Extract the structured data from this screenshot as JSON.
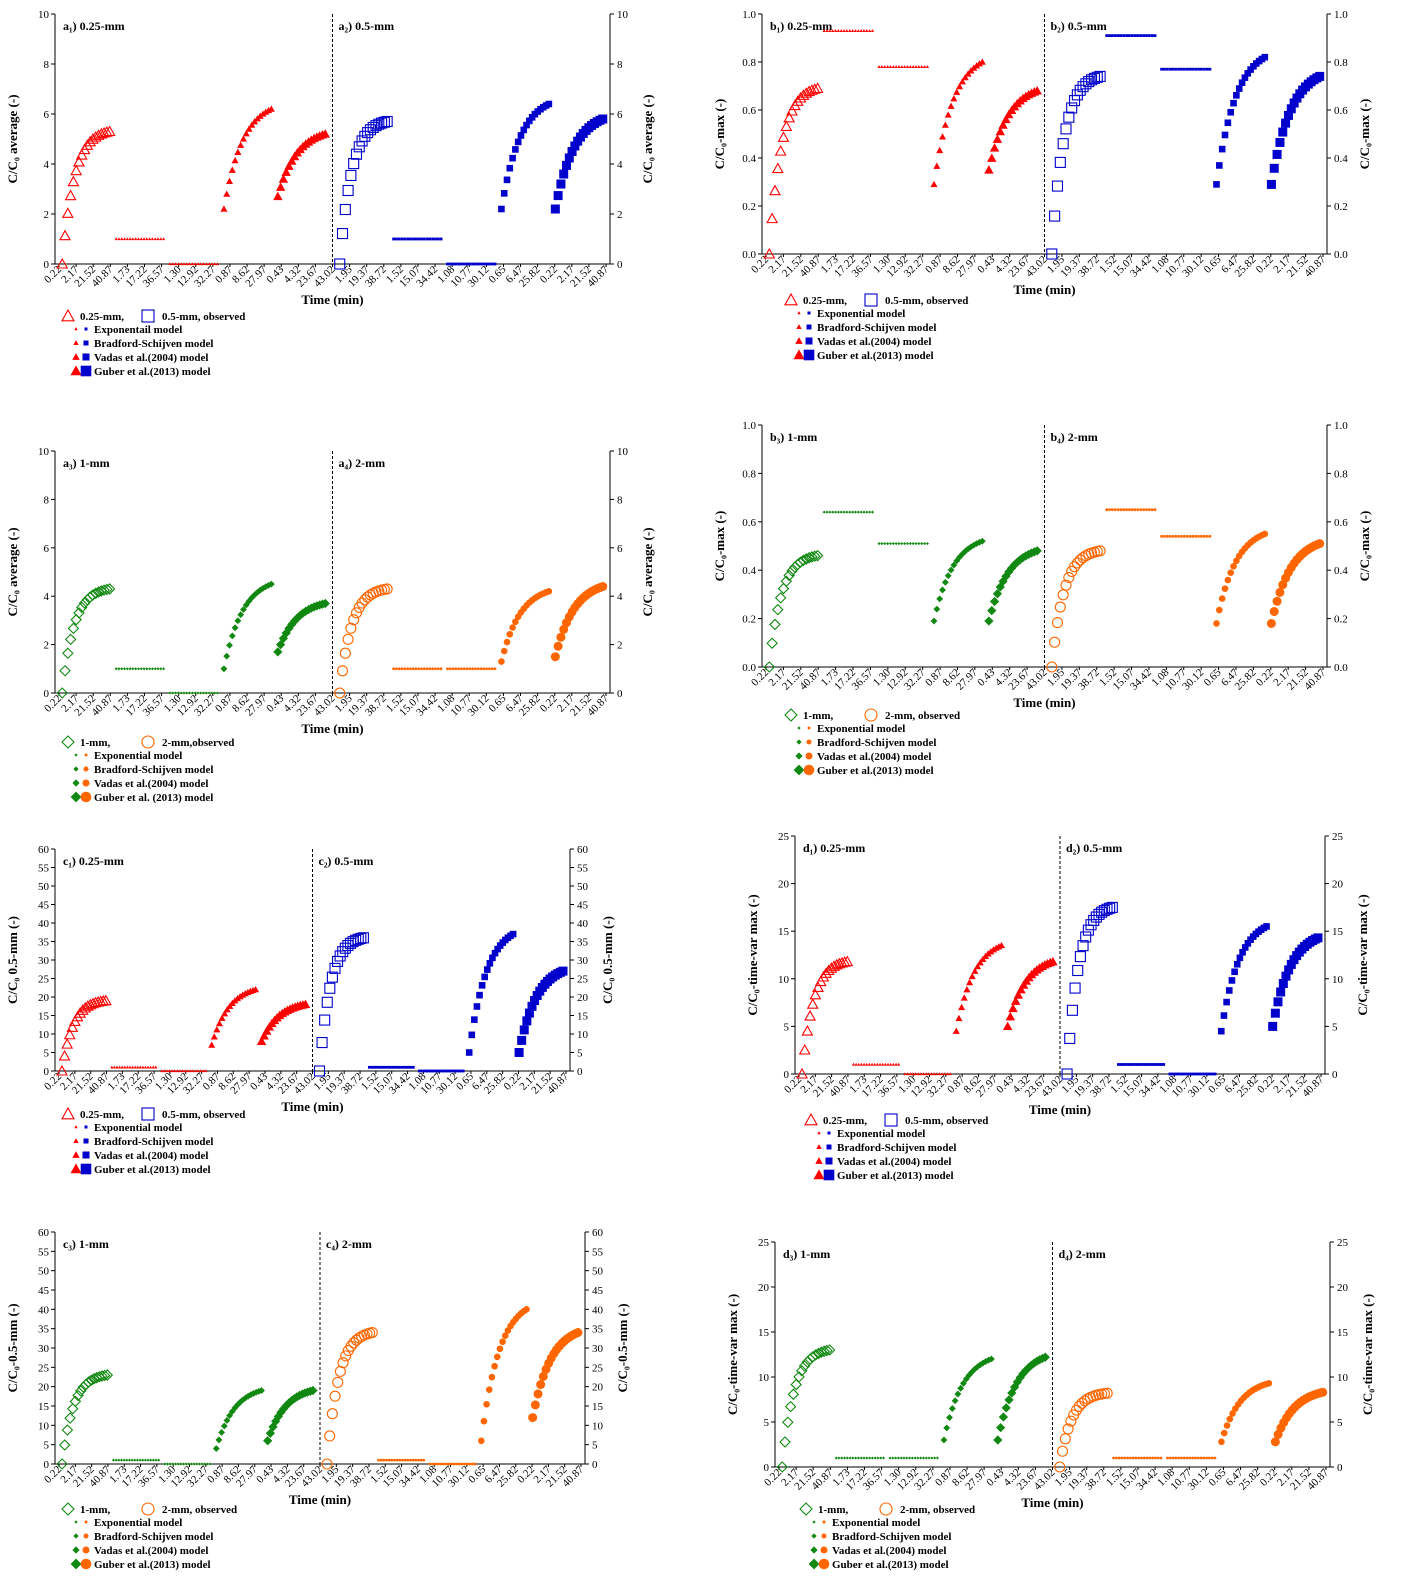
{
  "colors": {
    "red": "#ff0000",
    "blue": "#0000cc",
    "green": "#118811",
    "orange": "#ff6600"
  },
  "icons": [
    "open-triangle-marker",
    "open-square-marker",
    "open-diamond-marker",
    "open-circle-marker",
    "small-dot-marker",
    "triangle-marker",
    "square-marker",
    "diamond-marker",
    "circle-marker"
  ],
  "panels": [
    {
      "id": "a12",
      "left_label": "a₁) 0.25-mm",
      "right_label": "a₂) 0.5-mm",
      "ylabel": "C/C₀ average (-)",
      "xlabel": "Time (min)",
      "yticks": [
        "0",
        "2",
        "4",
        "6",
        "8",
        "10"
      ],
      "ymax": 10,
      "legend": [
        {
          "text": "0.25-mm,",
          "marker": "open-triangle",
          "color": "red"
        },
        {
          "text": "0.5-mm, observed",
          "marker": "open-square",
          "color": "blue"
        },
        {
          "text": "Exponentail model"
        },
        {
          "text": "Bradford-Schijven model"
        },
        {
          "text": "Vadas et al.(2004) model"
        },
        {
          "text": "Guber et al.(2013) model"
        }
      ]
    },
    {
      "id": "b12",
      "left_label": "b₁) 0.25-mm",
      "right_label": "b₂) 0.5-mm",
      "ylabel": "C/C₀-max (-)",
      "xlabel": "Time (min)",
      "yticks": [
        "0.0",
        "0.2",
        "0.4",
        "0.6",
        "0.8",
        "1.0"
      ],
      "ymax": 1,
      "legend": [
        {
          "text": "0.25-mm,",
          "marker": "open-triangle",
          "color": "red"
        },
        {
          "text": "0.5-mm, observed",
          "marker": "open-square",
          "color": "blue"
        },
        {
          "text": "Exponential model"
        },
        {
          "text": "Bradford-Schijven model"
        },
        {
          "text": "Vadas et al.(2004) model"
        },
        {
          "text": "Guber et al.(2013) model"
        }
      ]
    },
    {
      "id": "a34",
      "left_label": "a₃) 1-mm",
      "right_label": "a₄) 2-mm",
      "ylabel": "C/C₀ average (-)",
      "xlabel": "Time (min)",
      "yticks": [
        "0",
        "2",
        "4",
        "6",
        "8",
        "10"
      ],
      "ymax": 10,
      "legend": [
        {
          "text": "1-mm,",
          "marker": "open-diamond",
          "color": "green"
        },
        {
          "text": "2-mm,observed",
          "marker": "open-circle",
          "color": "orange"
        },
        {
          "text": "Exponential model"
        },
        {
          "text": "Bradford-Schijven model"
        },
        {
          "text": "Vadas et al.(2004) model"
        },
        {
          "text": "Guber et al. (2013) model"
        }
      ]
    },
    {
      "id": "b34",
      "left_label": "b₃) 1-mm",
      "right_label": "b₄) 2-mm",
      "ylabel": "C/C₀-max (-)",
      "xlabel": "Time (min)",
      "yticks": [
        "0.0",
        "0.2",
        "0.4",
        "0.6",
        "0.8",
        "1.0"
      ],
      "ymax": 1,
      "legend": [
        {
          "text": "1-mm,",
          "marker": "open-diamond",
          "color": "green"
        },
        {
          "text": "2-mm, observed",
          "marker": "open-circle",
          "color": "orange"
        },
        {
          "text": "Exponential model"
        },
        {
          "text": "Bradford-Schijven model"
        },
        {
          "text": "Vadas et al.(2004) model"
        },
        {
          "text": "Guber et al.(2013) model"
        }
      ]
    },
    {
      "id": "c12",
      "left_label": "c₁) 0.25-mm",
      "right_label": "c₂) 0.5-mm",
      "ylabel": "C/C₀ 0.5-mm (-)",
      "xlabel": "Time (min)",
      "yticks": [
        "0",
        "5",
        "10",
        "15",
        "20",
        "25",
        "30",
        "35",
        "40",
        "45",
        "50",
        "55",
        "60"
      ],
      "ymax": 60,
      "legend": [
        {
          "text": "0.25-mm,",
          "marker": "open-triangle",
          "color": "red"
        },
        {
          "text": "0.5-mm, observed",
          "marker": "open-square",
          "color": "blue"
        },
        {
          "text": "Exponential model"
        },
        {
          "text": "Bradford-Schijven model"
        },
        {
          "text": "Vadas et al.(2004) model"
        },
        {
          "text": "Guber et al.(2013) model"
        }
      ]
    },
    {
      "id": "d12",
      "left_label": "d₁) 0.25-mm",
      "right_label": "d₂) 0.5-mm",
      "ylabel": "C/C₀-time-var max (-)",
      "xlabel": "Time (min)",
      "yticks": [
        "0",
        "5",
        "10",
        "15",
        "20",
        "25"
      ],
      "ymax": 25,
      "legend": [
        {
          "text": "0.25-mm,",
          "marker": "open-triangle",
          "color": "red"
        },
        {
          "text": "0.5-mm, observed",
          "marker": "open-square",
          "color": "blue"
        },
        {
          "text": "Exponential model"
        },
        {
          "text": "Bradford-Schijven model"
        },
        {
          "text": "Vadas et al.(2004) model"
        },
        {
          "text": "Guber et al.(2013) model"
        }
      ]
    },
    {
      "id": "c34",
      "left_label": "c₃) 1-mm",
      "right_label": "c₄) 2-mm",
      "ylabel": "C/C₀-0.5-mm (-)",
      "xlabel": "Time (min)",
      "yticks": [
        "0",
        "5",
        "10",
        "15",
        "20",
        "25",
        "30",
        "35",
        "40",
        "45",
        "50",
        "55",
        "60"
      ],
      "ymax": 60,
      "legend": [
        {
          "text": "1-mm,",
          "marker": "open-diamond",
          "color": "green"
        },
        {
          "text": "2-mm, observed",
          "marker": "open-circle",
          "color": "orange"
        },
        {
          "text": "Exponential model"
        },
        {
          "text": "Bradford-Schijven model"
        },
        {
          "text": "Vadas et al.(2004) model"
        },
        {
          "text": "Guber et al.(2013) model"
        }
      ]
    },
    {
      "id": "d34",
      "left_label": "d₃) 1-mm",
      "right_label": "d₄) 2-mm",
      "ylabel": "C/C₀-time-var max (-)",
      "xlabel": "Time (min)",
      "yticks": [
        "0",
        "5",
        "10",
        "15",
        "20",
        "25"
      ],
      "ymax": 25,
      "legend": [
        {
          "text": "1-mm,",
          "marker": "open-diamond",
          "color": "green"
        },
        {
          "text": "2-mm, observed",
          "marker": "open-circle",
          "color": "orange"
        },
        {
          "text": "Exponential model"
        },
        {
          "text": "Bradford-Schijven model"
        },
        {
          "text": "Vadas et al.(2004) model"
        },
        {
          "text": "Guber et al.(2013) model"
        }
      ]
    }
  ],
  "chart_data": [
    {
      "type": "scatter",
      "x_tick_labels": [
        "0.22",
        "2.17",
        "21.52",
        "40.87",
        "1.73",
        "17.22",
        "36.57",
        "1.30",
        "12.92",
        "32.27",
        "0.87",
        "8.62",
        "27.97",
        "0.43",
        "4.32",
        "23.67",
        "43.02",
        "1.95",
        "19.37",
        "38.72",
        "1.52",
        "15.07",
        "34.42",
        "1.08",
        "10.77",
        "30.12",
        "0.65",
        "6.47",
        "25.82",
        "0.22",
        "2.17",
        "21.52",
        "40.87"
      ],
      "xlabel": "Time (min)",
      "groups": [
        "observed",
        "Exponential model",
        "Bradford-Schijven model",
        "Vadas et al.(2004) model",
        "Guber et al.(2013) model"
      ],
      "panels": {
        "a12": {
          "ymax": 10,
          "left": {
            "colorKey": "red",
            "obs": 5.3,
            "exp": 1.0,
            "bs": 0.0,
            "vadas": 6.2,
            "vadas_lo": 2.2,
            "guber": 5.2,
            "guber_lo": 2.7
          },
          "right": {
            "colorKey": "blue",
            "obs": 5.7,
            "exp": 1.0,
            "bs": 0.0,
            "vadas": 6.4,
            "vadas_lo": 2.2,
            "guber": 5.8,
            "guber_lo": 2.2
          }
        },
        "b12": {
          "ymax": 1,
          "left": {
            "colorKey": "red",
            "obs": 0.69,
            "exp": 0.93,
            "bs": 0.78,
            "vadas": 0.8,
            "vadas_lo": 0.29,
            "guber": 0.68,
            "guber_lo": 0.35
          },
          "right": {
            "colorKey": "blue",
            "obs": 0.74,
            "exp": 0.91,
            "bs": 0.77,
            "vadas": 0.82,
            "vadas_lo": 0.29,
            "guber": 0.74,
            "guber_lo": 0.29
          }
        },
        "a34": {
          "ymax": 10,
          "left": {
            "colorKey": "green",
            "obs": 4.3,
            "exp": 1.0,
            "bs": 0.0,
            "vadas": 4.5,
            "vadas_lo": 1.0,
            "guber": 3.7,
            "guber_lo": 1.7
          },
          "right": {
            "colorKey": "orange",
            "obs": 4.3,
            "exp": 1.0,
            "bs": 1.0,
            "vadas": 4.2,
            "vadas_lo": 1.3,
            "guber": 4.4,
            "guber_lo": 1.5
          }
        },
        "b34": {
          "ymax": 1,
          "left": {
            "colorKey": "green",
            "obs": 0.46,
            "exp": 0.64,
            "bs": 0.51,
            "vadas": 0.52,
            "vadas_lo": 0.19,
            "guber": 0.48,
            "guber_lo": 0.19
          },
          "right": {
            "colorKey": "orange",
            "obs": 0.48,
            "exp": 0.65,
            "bs": 0.54,
            "vadas": 0.55,
            "vadas_lo": 0.18,
            "guber": 0.51,
            "guber_lo": 0.18
          }
        },
        "c12": {
          "ymax": 60,
          "left": {
            "colorKey": "red",
            "obs": 19,
            "exp": 1,
            "bs": 0,
            "vadas": 22,
            "vadas_lo": 7,
            "guber": 18,
            "guber_lo": 8
          },
          "right": {
            "colorKey": "blue",
            "obs": 36,
            "exp": 1,
            "bs": 0,
            "vadas": 37,
            "vadas_lo": 5,
            "guber": 27,
            "guber_lo": 5
          }
        },
        "d12": {
          "ymax": 25,
          "left": {
            "colorKey": "red",
            "obs": 11.8,
            "exp": 1,
            "bs": 0,
            "vadas": 13.5,
            "vadas_lo": 4.5,
            "guber": 11.8,
            "guber_lo": 5
          },
          "right": {
            "colorKey": "blue",
            "obs": 17.5,
            "exp": 1,
            "bs": 0,
            "vadas": 15.5,
            "vadas_lo": 4.5,
            "guber": 14.3,
            "guber_lo": 5
          }
        },
        "c34": {
          "ymax": 60,
          "left": {
            "colorKey": "green",
            "obs": 23,
            "exp": 1,
            "bs": 0,
            "vadas": 19,
            "vadas_lo": 4,
            "guber": 19,
            "guber_lo": 6
          },
          "right": {
            "colorKey": "orange",
            "obs": 34,
            "exp": 1,
            "bs": 0,
            "vadas": 40,
            "vadas_lo": 6,
            "guber": 34,
            "guber_lo": 12
          }
        },
        "d34": {
          "ymax": 25,
          "left": {
            "colorKey": "green",
            "obs": 13,
            "exp": 1,
            "bs": 1,
            "vadas": 12,
            "vadas_lo": 3,
            "guber": 12.2,
            "guber_lo": 3
          },
          "right": {
            "colorKey": "orange",
            "obs": 8.2,
            "exp": 1,
            "bs": 1,
            "vadas": 9.3,
            "vadas_lo": 2.8,
            "guber": 8.3,
            "guber_lo": 2.8
          }
        }
      }
    }
  ]
}
